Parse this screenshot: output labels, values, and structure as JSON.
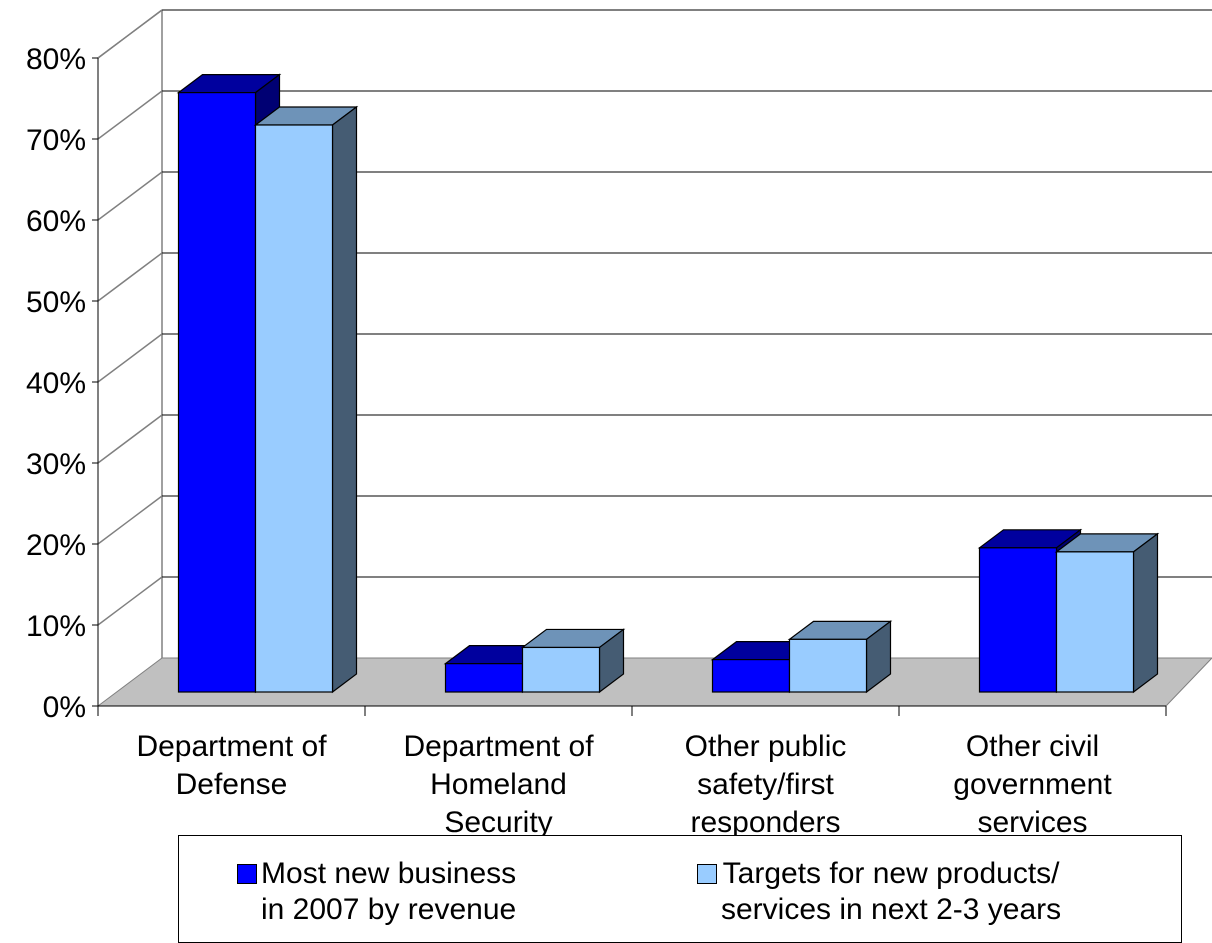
{
  "chart_data": {
    "type": "bar",
    "style": "3d-clustered-column",
    "categories": [
      [
        "Department of",
        "Defense"
      ],
      [
        "Department of",
        "Homeland",
        "Security"
      ],
      [
        "Other public",
        "safety/first",
        "responders"
      ],
      [
        "Other civil",
        "government",
        "services"
      ]
    ],
    "series": [
      {
        "name": "Most new business\nin 2007 by revenue",
        "values": [
          74,
          3.5,
          4,
          17.8
        ],
        "color": "#0000ff"
      },
      {
        "name": "Targets for new products/\nservices in next 2-3 years",
        "values": [
          70,
          5.5,
          6.5,
          17.3
        ],
        "color": "#99ccff"
      }
    ],
    "y_ticks": [
      "0%",
      "10%",
      "20%",
      "30%",
      "40%",
      "50%",
      "60%",
      "70%",
      "80%"
    ],
    "ylim": [
      0,
      80
    ],
    "grid": true,
    "legend_position": "bottom",
    "floor_color": "#c0c0c0"
  }
}
